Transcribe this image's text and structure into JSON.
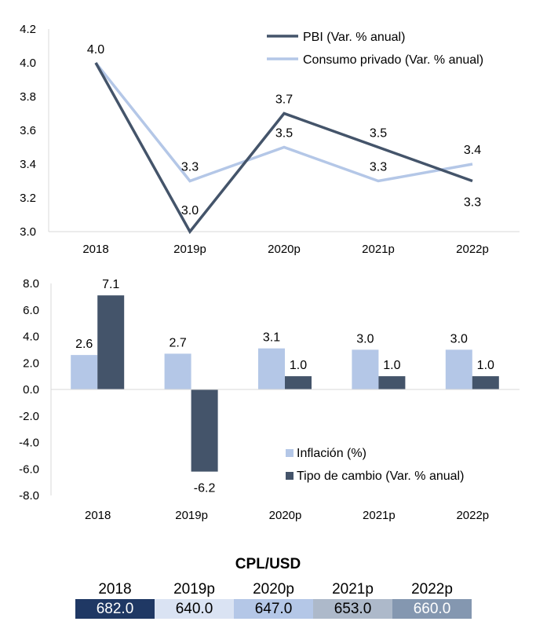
{
  "charts": {
    "gdp": {
      "chart_data": {
        "type": "line",
        "categories": [
          "2018",
          "2019p",
          "2020p",
          "2021p",
          "2022p"
        ],
        "series": [
          {
            "name": "PBI (Var. % anual)",
            "values": [
              4.0,
              3.0,
              3.7,
              3.5,
              3.3
            ],
            "labels": [
              "4.0",
              "3.0",
              "3.7",
              "3.5",
              "3.3"
            ],
            "color": "#44546a"
          },
          {
            "name": "Consumo privado (Var. % anual)",
            "values": [
              4.0,
              3.3,
              3.5,
              3.3,
              3.4
            ],
            "labels": [
              "",
              "3.3",
              "3.5",
              "3.3",
              "3.4"
            ],
            "color": "#b4c7e7"
          }
        ],
        "ylim": [
          3.0,
          4.2
        ],
        "yticks": [
          "3.0",
          "3.2",
          "3.4",
          "3.6",
          "3.8",
          "4.0",
          "4.2"
        ],
        "legend": "top-right",
        "grid": false
      }
    },
    "inflation": {
      "chart_data": {
        "type": "bar",
        "categories": [
          "2018",
          "2019p",
          "2020p",
          "2021p",
          "2022p"
        ],
        "series": [
          {
            "name": "Inflación (%)",
            "values": [
              2.6,
              2.7,
              3.1,
              3.0,
              3.0
            ],
            "labels": [
              "2.6",
              "2.7",
              "3.1",
              "3.0",
              "3.0"
            ],
            "color": "#b4c7e7"
          },
          {
            "name": "Tipo de cambio  (Var. % anual)",
            "values": [
              7.1,
              -6.2,
              1.0,
              1.0,
              1.0
            ],
            "labels": [
              "7.1",
              "-6.2",
              "1.0",
              "1.0",
              "1.0"
            ],
            "color": "#44546a"
          }
        ],
        "ylim": [
          -8.0,
          8.0
        ],
        "yticks": [
          "-8.0",
          "-6.0",
          "-4.0",
          "-2.0",
          "0.0",
          "2.0",
          "4.0",
          "6.0",
          "8.0"
        ],
        "legend": "bottom-right",
        "grid": false
      }
    }
  },
  "cpl_table": {
    "title": "CPL/USD",
    "years": [
      "2018",
      "2019p",
      "2020p",
      "2021p",
      "2022p"
    ],
    "values": [
      "682.0",
      "640.0",
      "647.0",
      "653.0",
      "660.0"
    ],
    "colors": [
      "#1f3864",
      "#dae3f3",
      "#b4c7e7",
      "#adb9ca",
      "#8497b0"
    ],
    "text_colors": [
      "#ffffff",
      "#000000",
      "#000000",
      "#000000",
      "#ffffff"
    ]
  }
}
